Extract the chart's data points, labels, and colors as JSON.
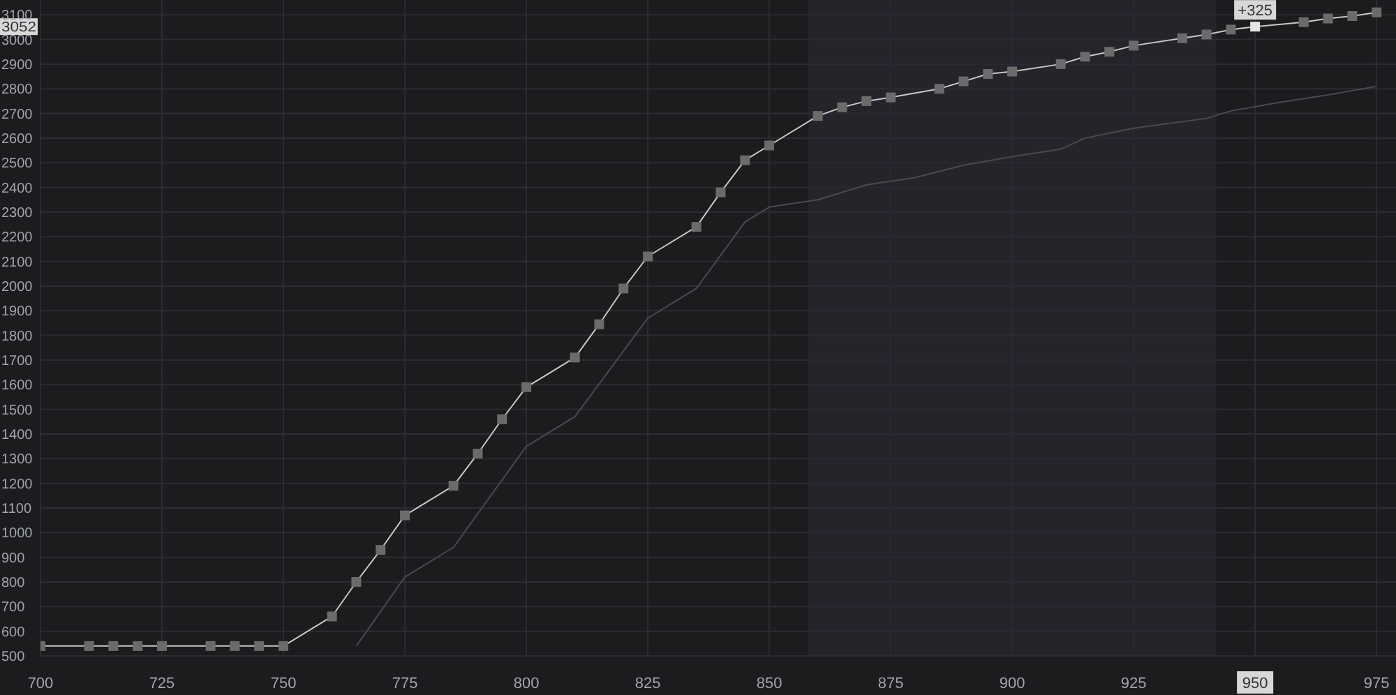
{
  "chart_data": {
    "type": "line",
    "x": [
      700,
      710,
      715,
      720,
      725,
      735,
      740,
      745,
      750,
      760,
      765,
      770,
      775,
      785,
      790,
      795,
      800,
      810,
      815,
      820,
      825,
      835,
      840,
      845,
      850,
      860,
      865,
      870,
      875,
      885,
      890,
      895,
      900,
      910,
      915,
      920,
      925,
      935,
      940,
      945,
      950,
      960,
      965,
      970,
      975
    ],
    "series": [
      {
        "color": "#c8c8c8",
        "values": [
          540,
          540,
          540,
          540,
          540,
          540,
          540,
          540,
          540,
          660,
          800,
          930,
          1070,
          1190,
          1320,
          1460,
          1590,
          1710,
          1845,
          1990,
          2120,
          2240,
          2380,
          2510,
          2570,
          2690,
          2725,
          2750,
          2765,
          2800,
          2830,
          2860,
          2870,
          2900,
          2930,
          2950,
          2975,
          3005,
          3020,
          3040,
          3052,
          3070,
          3085,
          3095,
          3110
        ]
      },
      {
        "color": "#4a4a4e",
        "marker": "none",
        "x": [
          765,
          775,
          785,
          800,
          810,
          825,
          835,
          845,
          850,
          860,
          870,
          880,
          890,
          900,
          910,
          915,
          925,
          940,
          945,
          955,
          965,
          975
        ],
        "values": [
          540,
          820,
          940,
          1350,
          1470,
          1870,
          1990,
          2260,
          2320,
          2350,
          2410,
          2440,
          2490,
          2525,
          2555,
          2600,
          2640,
          2680,
          2710,
          2745,
          2775,
          2810
        ]
      }
    ],
    "xlim": [
      700,
      979
    ],
    "xticks": [
      700,
      725,
      750,
      775,
      800,
      825,
      850,
      875,
      900,
      925,
      950,
      975
    ],
    "ylim": [
      500,
      3160
    ],
    "yticks": [
      500,
      600,
      700,
      800,
      900,
      1000,
      1100,
      1200,
      1300,
      1400,
      1500,
      1600,
      1700,
      1800,
      1900,
      2000,
      2100,
      2200,
      2300,
      2400,
      2500,
      2600,
      2700,
      2800,
      2900,
      3000,
      3100
    ],
    "grid": true,
    "marker": "square",
    "line_style": "solid",
    "bands": [
      {
        "axis": "x",
        "from": 858,
        "to": 942,
        "color": "#2a2a33"
      }
    ],
    "annotations": [
      {
        "text": "+325",
        "x": 950,
        "y": 3052
      },
      {
        "text": "3052",
        "y": 3052
      }
    ]
  }
}
